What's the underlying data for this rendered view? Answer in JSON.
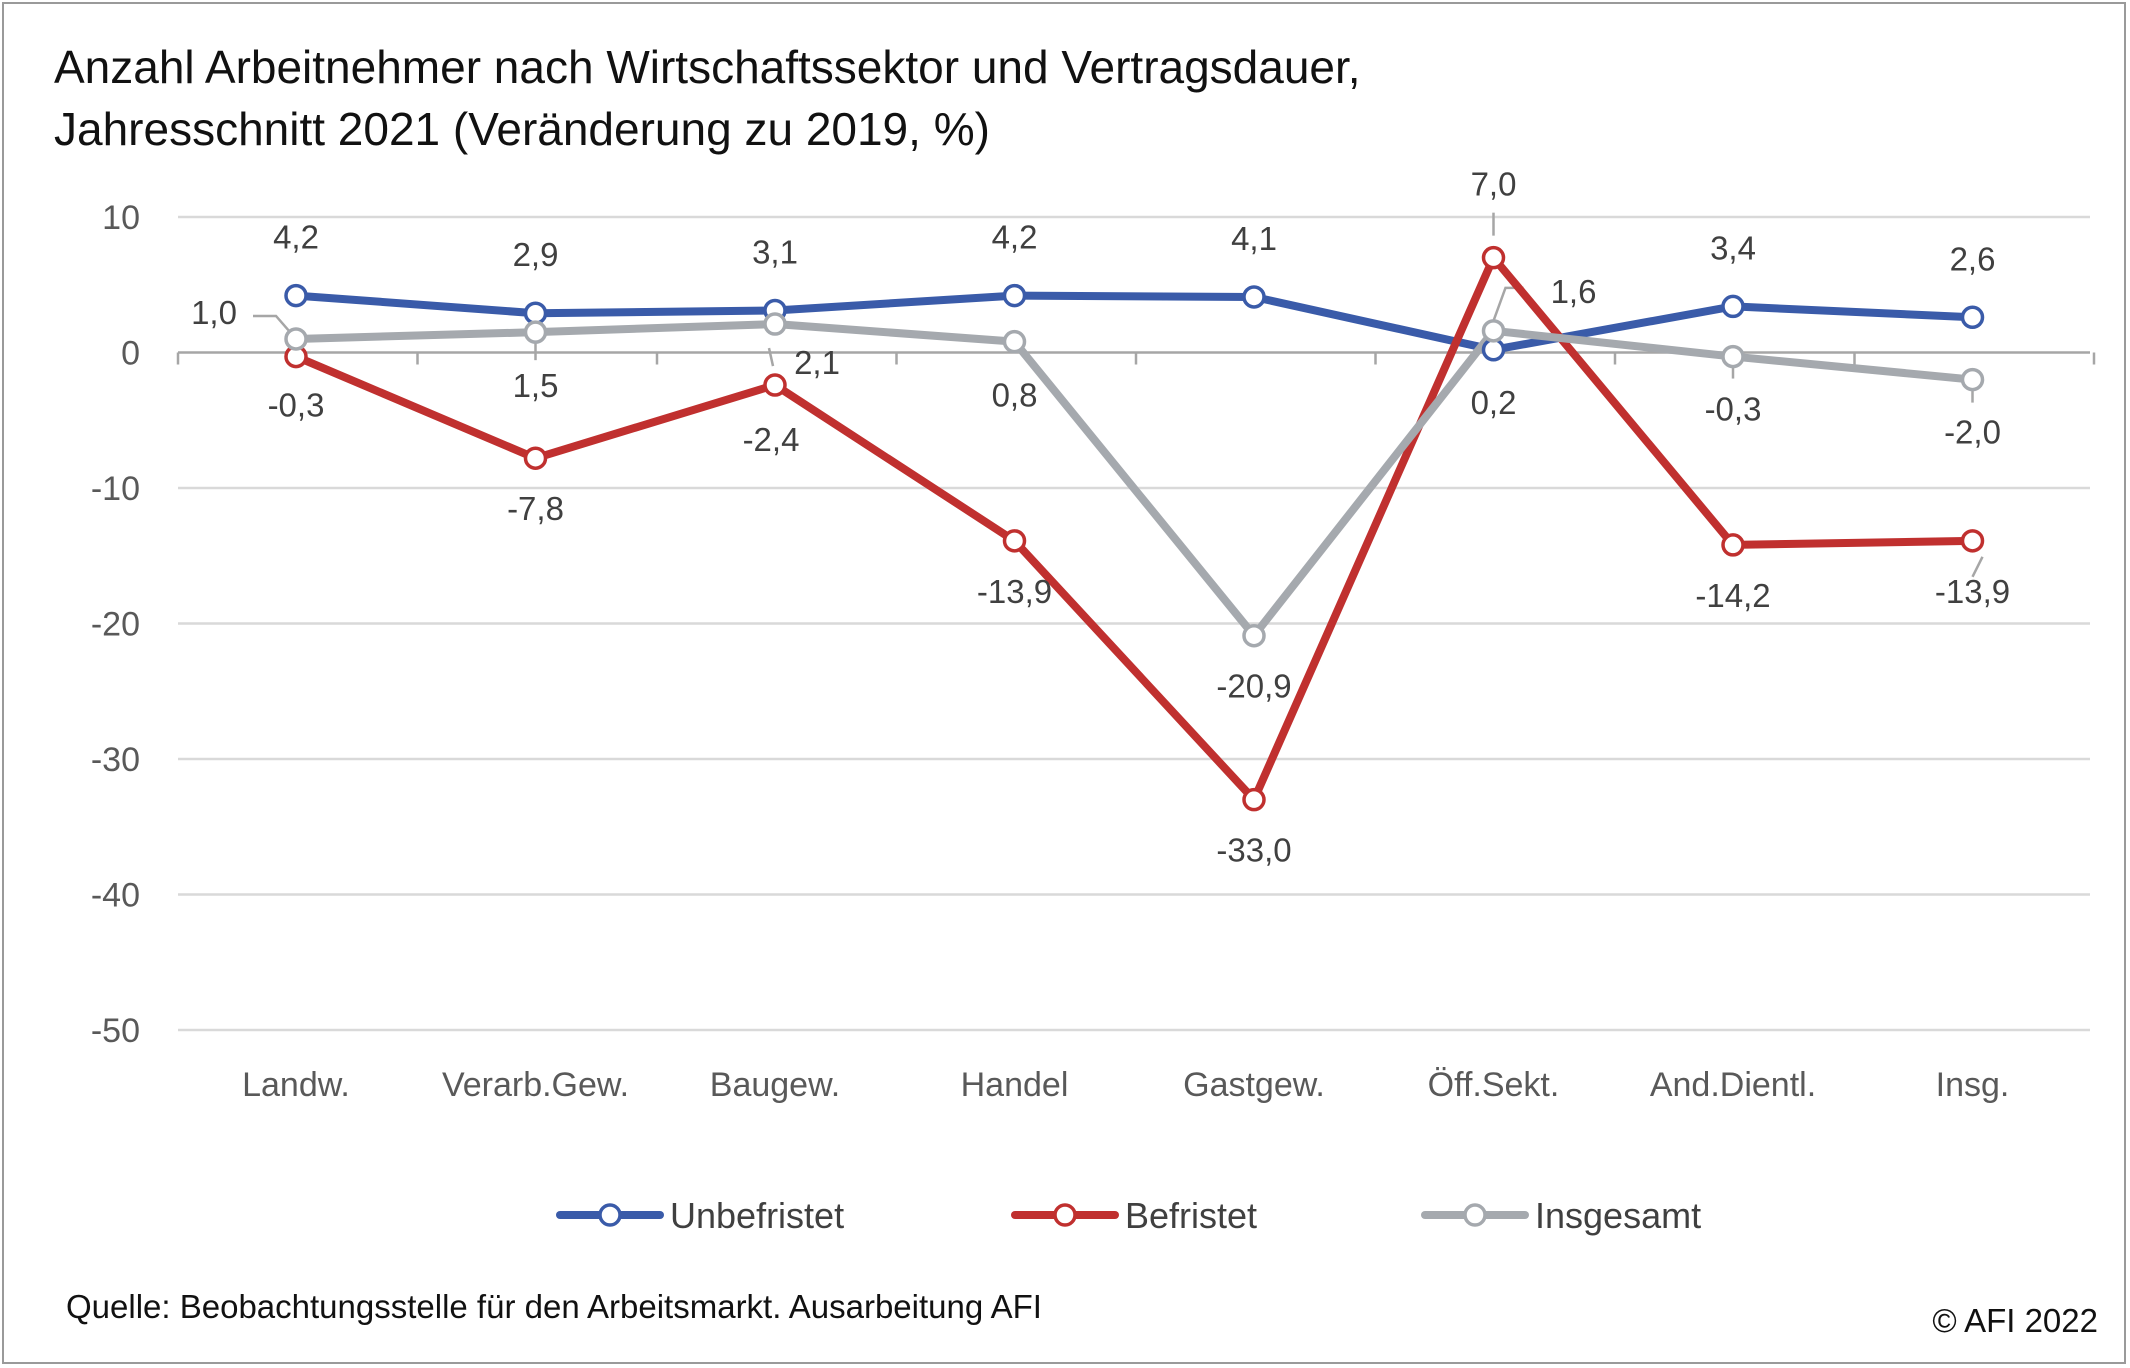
{
  "title": {
    "line1": "Anzahl Arbeitnehmer nach Wirtschaftssektor und Vertragsdauer,",
    "line2": "Jahresschnitt 2021 (Veränderung zu 2019, %)"
  },
  "source": "Quelle: Beobachtungsstelle für den Arbeitsmarkt. Ausarbeitung AFI",
  "copyright": "© AFI 2022",
  "chart_data": {
    "type": "line",
    "title": "Anzahl Arbeitnehmer nach Wirtschaftssektor und Vertragsdauer, Jahresschnitt 2021 (Veränderung zu 2019, %)",
    "categories": [
      "Landw.",
      "Verarb.Gew.",
      "Baugew.",
      "Handel",
      "Gastgew.",
      "Öff.Sekt.",
      "And.Dientl.",
      "Insg."
    ],
    "ylim": [
      -50,
      10
    ],
    "yticks": [
      10,
      0,
      -10,
      -20,
      -30,
      -40,
      -50
    ],
    "ytick_labels": [
      "10",
      "0",
      "-10",
      "-20",
      "-30",
      "-40",
      "-50"
    ],
    "grid": true,
    "legend_position": "bottom",
    "series": [
      {
        "name": "Unbefristet",
        "color": "#3a5ba9",
        "values": [
          4.2,
          2.9,
          3.1,
          4.2,
          4.1,
          0.2,
          3.4,
          2.6
        ],
        "labels": [
          "4,2",
          "2,9",
          "3,1",
          "4,2",
          "4,1",
          "0,2",
          "3,4",
          "2,6"
        ]
      },
      {
        "name": "Befristet",
        "color": "#c0302f",
        "values": [
          -0.3,
          -7.8,
          -2.4,
          -13.9,
          -33.0,
          7.0,
          -14.2,
          -13.9
        ],
        "labels": [
          "-0,3",
          "-7,8",
          "-2,4",
          "-13,9",
          "-33,0",
          "7,0",
          "-14,2",
          "-13,9"
        ]
      },
      {
        "name": "Insgesamt",
        "color": "#a5a9ae",
        "values": [
          1.0,
          1.5,
          2.1,
          0.8,
          -20.9,
          1.6,
          -0.3,
          -2.0
        ],
        "labels": [
          "1,0",
          "1,5",
          "2,1",
          "0,8",
          "-20,9",
          "1,6",
          "-0,3",
          "-2,0"
        ]
      }
    ]
  }
}
